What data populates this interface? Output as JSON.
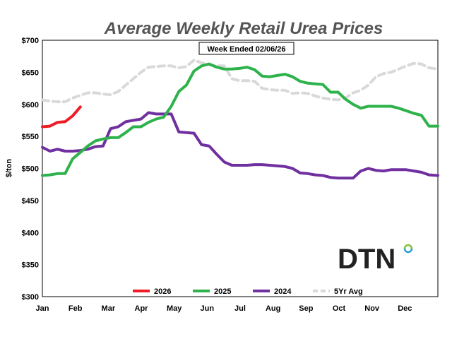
{
  "chart_data": {
    "type": "line",
    "title": "Average Weekly Retail Urea Prices",
    "annotation": "Week Ended 02/06/26",
    "ylabel": "$/ton",
    "xlabel": "",
    "ylim": [
      300,
      700
    ],
    "xlim": [
      0,
      12
    ],
    "y_ticks": [
      300,
      350,
      400,
      450,
      500,
      550,
      600,
      650,
      700
    ],
    "y_tick_labels": [
      "$300",
      "$350",
      "$400",
      "$450",
      "$500",
      "$550",
      "$600",
      "$650",
      "$700"
    ],
    "months": [
      "Jan",
      "Feb",
      "Mar",
      "Apr",
      "May",
      "Jun",
      "Jul",
      "Aug",
      "Sep",
      "Oct",
      "Nov",
      "Dec"
    ],
    "grid": false,
    "legend_position": "bottom",
    "logo_text": "DTN",
    "series": [
      {
        "name": "5Yr Avg",
        "color": "#d9d9d9",
        "dashed": true,
        "x": [
          0,
          0.23,
          0.46,
          0.69,
          0.92,
          1.15,
          1.38,
          1.61,
          1.84,
          2.07,
          2.3,
          2.53,
          2.76,
          2.99,
          3.22,
          3.45,
          3.68,
          3.91,
          4.14,
          4.37,
          4.6,
          4.83,
          5.06,
          5.29,
          5.52,
          5.75,
          5.98,
          6.21,
          6.44,
          6.67,
          6.9,
          7.13,
          7.36,
          7.59,
          7.82,
          8.05,
          8.28,
          8.51,
          8.74,
          8.97,
          9.2,
          9.43,
          9.66,
          9.89,
          10.12,
          10.35,
          10.58,
          10.81,
          11.04,
          11.27,
          11.5,
          11.73,
          12.0
        ],
        "values": [
          607,
          605,
          604,
          604,
          610,
          614,
          618,
          618,
          616,
          615,
          620,
          630,
          640,
          650,
          658,
          659,
          660,
          660,
          657,
          659,
          669,
          665,
          662,
          660,
          660,
          640,
          637,
          637,
          636,
          625,
          623,
          622,
          622,
          617,
          618,
          617,
          613,
          610,
          608,
          607,
          610,
          618,
          622,
          630,
          643,
          648,
          650,
          655,
          660,
          664,
          663,
          657,
          655
        ]
      },
      {
        "name": "2024",
        "color": "#7030a0",
        "dashed": false,
        "x": [
          0,
          0.23,
          0.46,
          0.69,
          0.92,
          1.15,
          1.38,
          1.61,
          1.84,
          2.07,
          2.3,
          2.53,
          2.76,
          2.99,
          3.22,
          3.45,
          3.68,
          3.91,
          4.14,
          4.37,
          4.6,
          4.83,
          5.06,
          5.29,
          5.52,
          5.75,
          5.98,
          6.21,
          6.44,
          6.67,
          6.9,
          7.13,
          7.36,
          7.59,
          7.82,
          8.05,
          8.28,
          8.51,
          8.74,
          8.97,
          9.2,
          9.43,
          9.66,
          9.89,
          10.12,
          10.35,
          10.58,
          10.81,
          11.04,
          11.27,
          11.5,
          11.73,
          12.0
        ],
        "values": [
          533,
          527,
          530,
          527,
          527,
          528,
          530,
          534,
          535,
          562,
          565,
          573,
          575,
          577,
          587,
          585,
          585,
          585,
          557,
          556,
          555,
          537,
          535,
          522,
          510,
          505,
          505,
          505,
          506,
          506,
          505,
          504,
          503,
          500,
          493,
          492,
          490,
          489,
          486,
          485,
          485,
          485,
          496,
          500,
          497,
          496,
          498,
          498,
          498,
          496,
          494,
          490,
          489
        ]
      },
      {
        "name": "2025",
        "color": "#2eb24b",
        "dashed": false,
        "x": [
          0,
          0.23,
          0.46,
          0.69,
          0.92,
          1.15,
          1.38,
          1.61,
          1.84,
          2.07,
          2.3,
          2.53,
          2.76,
          2.99,
          3.22,
          3.45,
          3.68,
          3.91,
          4.14,
          4.37,
          4.6,
          4.83,
          5.06,
          5.29,
          5.52,
          5.75,
          5.98,
          6.21,
          6.44,
          6.67,
          6.9,
          7.13,
          7.36,
          7.59,
          7.82,
          8.05,
          8.28,
          8.51,
          8.74,
          8.97,
          9.2,
          9.43,
          9.66,
          9.89,
          10.12,
          10.35,
          10.58,
          10.81,
          11.04,
          11.27,
          11.5,
          11.73,
          12.0
        ],
        "values": [
          489,
          490,
          492,
          492,
          515,
          525,
          535,
          543,
          546,
          548,
          548,
          556,
          565,
          565,
          572,
          577,
          580,
          597,
          620,
          630,
          652,
          660,
          663,
          658,
          655,
          655,
          656,
          658,
          654,
          644,
          643,
          645,
          647,
          643,
          636,
          633,
          632,
          631,
          619,
          619,
          608,
          600,
          594,
          597,
          597,
          597,
          597,
          594,
          590,
          586,
          583,
          566,
          566
        ]
      },
      {
        "name": "2026",
        "color": "#ee1c25",
        "dashed": false,
        "x": [
          0,
          0.23,
          0.46,
          0.69,
          0.92,
          1.15
        ],
        "values": [
          565,
          566,
          572,
          573,
          582,
          596
        ]
      }
    ],
    "legend_order": [
      "2026",
      "2025",
      "2024",
      "5Yr Avg"
    ]
  }
}
